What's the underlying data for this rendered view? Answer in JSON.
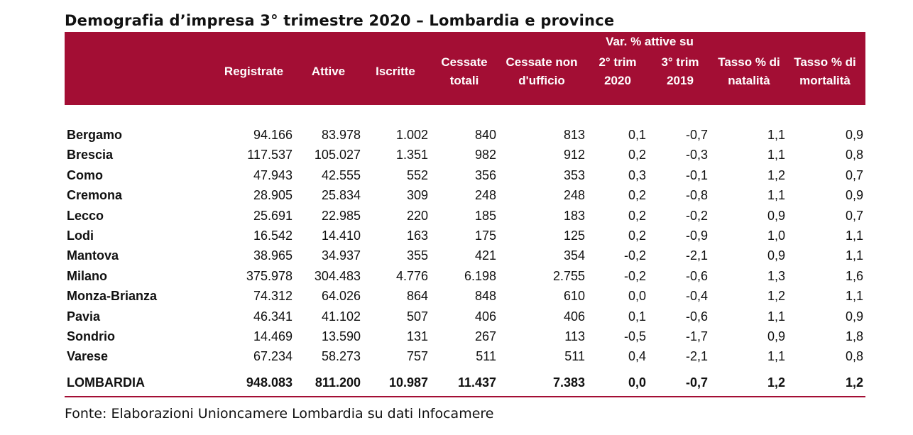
{
  "title": "Demografia d’impresa 3° trimestre 2020 – Lombardia e province",
  "header": {
    "var_group": "Var. % attive su",
    "columns": [
      {
        "lines": [
          "Registrate"
        ]
      },
      {
        "lines": [
          "Attive"
        ]
      },
      {
        "lines": [
          "Iscritte"
        ]
      },
      {
        "lines": [
          "Cessate",
          "totali"
        ]
      },
      {
        "lines": [
          "Cessate non",
          "d'ufficio"
        ]
      },
      {
        "lines": [
          "2° trim",
          "2020"
        ]
      },
      {
        "lines": [
          "3° trim",
          "2019"
        ]
      },
      {
        "lines": [
          "Tasso % di",
          "natalità"
        ]
      },
      {
        "lines": [
          "Tasso % di",
          "mortalità"
        ]
      }
    ]
  },
  "rows": [
    {
      "name": "Bergamo",
      "values": [
        "94.166",
        "83.978",
        "1.002",
        "840",
        "813",
        "0,1",
        "-0,7",
        "1,1",
        "0,9"
      ]
    },
    {
      "name": "Brescia",
      "values": [
        "117.537",
        "105.027",
        "1.351",
        "982",
        "912",
        "0,2",
        "-0,3",
        "1,1",
        "0,8"
      ]
    },
    {
      "name": "Como",
      "values": [
        "47.943",
        "42.555",
        "552",
        "356",
        "353",
        "0,3",
        "-0,1",
        "1,2",
        "0,7"
      ]
    },
    {
      "name": "Cremona",
      "values": [
        "28.905",
        "25.834",
        "309",
        "248",
        "248",
        "0,2",
        "-0,8",
        "1,1",
        "0,9"
      ]
    },
    {
      "name": "Lecco",
      "values": [
        "25.691",
        "22.985",
        "220",
        "185",
        "183",
        "0,2",
        "-0,2",
        "0,9",
        "0,7"
      ]
    },
    {
      "name": "Lodi",
      "values": [
        "16.542",
        "14.410",
        "163",
        "175",
        "125",
        "0,2",
        "-0,9",
        "1,0",
        "1,1"
      ]
    },
    {
      "name": "Mantova",
      "values": [
        "38.965",
        "34.937",
        "355",
        "421",
        "354",
        "-0,2",
        "-2,1",
        "0,9",
        "1,1"
      ]
    },
    {
      "name": "Milano",
      "values": [
        "375.978",
        "304.483",
        "4.776",
        "6.198",
        "2.755",
        "-0,2",
        "-0,6",
        "1,3",
        "1,6"
      ]
    },
    {
      "name": "Monza-Brianza",
      "values": [
        "74.312",
        "64.026",
        "864",
        "848",
        "610",
        "0,0",
        "-0,4",
        "1,2",
        "1,1"
      ]
    },
    {
      "name": "Pavia",
      "values": [
        "46.341",
        "41.102",
        "507",
        "406",
        "406",
        "0,1",
        "-0,6",
        "1,1",
        "0,9"
      ]
    },
    {
      "name": "Sondrio",
      "values": [
        "14.469",
        "13.590",
        "131",
        "267",
        "113",
        "-0,5",
        "-1,7",
        "0,9",
        "1,8"
      ]
    },
    {
      "name": "Varese",
      "values": [
        "67.234",
        "58.273",
        "757",
        "511",
        "511",
        "0,4",
        "-2,1",
        "1,1",
        "0,8"
      ]
    }
  ],
  "total": {
    "name": "LOMBARDIA",
    "values": [
      "948.083",
      "811.200",
      "10.987",
      "11.437",
      "7.383",
      "0,0",
      "-0,7",
      "1,2",
      "1,2"
    ]
  },
  "source": "Fonte: Elaborazioni Unioncamere Lombardia su dati Infocamere",
  "colors": {
    "header_bg": "#a30e34",
    "header_text": "#ffffff"
  }
}
